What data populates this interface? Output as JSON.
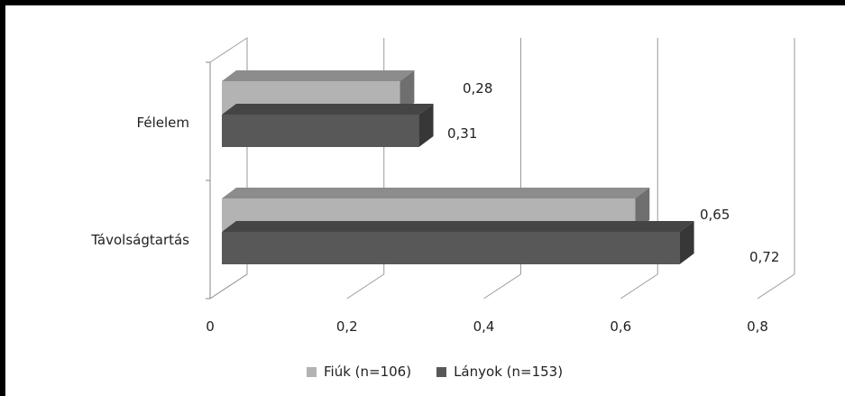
{
  "chart_data": {
    "type": "bar",
    "orientation": "horizontal",
    "style": "3d",
    "categories": [
      "Félelem",
      "Távolságtartás"
    ],
    "series": [
      {
        "name": "Fiúk (n=106)",
        "values": [
          0.28,
          0.65
        ],
        "color": "#b3b3b3",
        "labels": [
          "0,28",
          "0,65"
        ]
      },
      {
        "name": "Lányok (n=153)",
        "values": [
          0.31,
          0.72
        ],
        "color": "#585858",
        "labels": [
          "0,31",
          "0,72"
        ]
      }
    ],
    "xlim": [
      0,
      0.8
    ],
    "xticks": [
      "0",
      "0,2",
      "0,4",
      "0,6",
      "0,8"
    ],
    "grid": true,
    "legend_position": "bottom"
  }
}
